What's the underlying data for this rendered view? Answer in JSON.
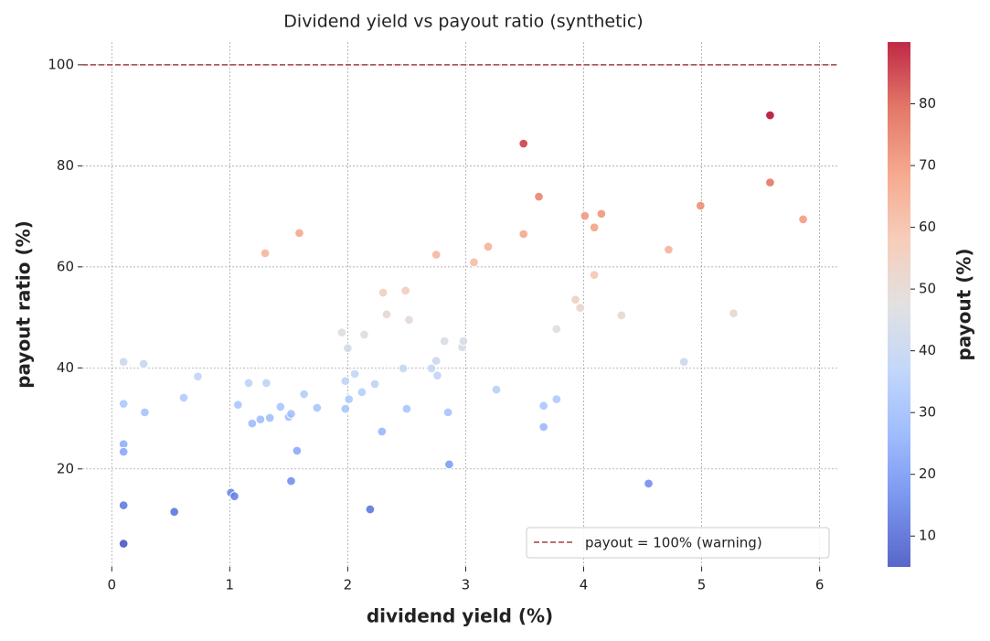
{
  "chart_data": {
    "type": "scatter",
    "title": "Dividend yield vs payout ratio (synthetic)",
    "x_label": "dividend yield (%)",
    "y_label": "payout ratio (%)",
    "x": [
      0.1,
      0.1,
      0.1,
      0.1,
      0.1,
      0.1,
      0.27,
      0.28,
      0.53,
      0.61,
      0.73,
      1.01,
      1.04,
      1.07,
      1.16,
      1.19,
      1.26,
      1.3,
      1.31,
      1.34,
      1.43,
      1.5,
      1.52,
      1.52,
      1.57,
      1.59,
      1.63,
      1.74,
      1.95,
      1.98,
      1.98,
      2.0,
      2.01,
      2.06,
      2.12,
      2.14,
      2.19,
      2.23,
      2.29,
      2.3,
      2.33,
      2.47,
      2.49,
      2.5,
      2.52,
      2.71,
      2.75,
      2.75,
      2.76,
      2.82,
      2.85,
      2.86,
      2.97,
      2.98,
      3.07,
      3.19,
      3.26,
      3.49,
      3.49,
      3.62,
      3.66,
      3.66,
      3.77,
      3.77,
      3.93,
      3.97,
      4.01,
      4.09,
      4.09,
      4.15,
      4.32,
      4.55,
      4.72,
      4.85,
      4.99,
      5.27,
      5.58,
      5.58,
      5.86
    ],
    "values": [
      5.2,
      12.8,
      24.9,
      23.4,
      32.9,
      41.2,
      40.8,
      31.2,
      11.5,
      34.1,
      38.3,
      15.3,
      14.6,
      32.7,
      37.0,
      29.0,
      29.8,
      62.7,
      37.0,
      30.1,
      32.3,
      30.3,
      30.9,
      17.6,
      23.6,
      66.7,
      34.8,
      32.1,
      47.0,
      31.9,
      37.4,
      43.9,
      33.8,
      38.8,
      35.2,
      46.6,
      12.0,
      36.8,
      27.4,
      54.9,
      50.6,
      39.9,
      55.3,
      31.9,
      49.5,
      39.9,
      62.4,
      41.4,
      38.5,
      45.3,
      31.2,
      20.9,
      44.1,
      45.3,
      60.9,
      64.0,
      35.7,
      84.4,
      66.5,
      73.9,
      32.5,
      28.3,
      47.7,
      33.8,
      53.5,
      51.9,
      70.1,
      67.8,
      58.4,
      70.5,
      50.4,
      17.1,
      63.4,
      41.2,
      72.1,
      50.8,
      90.0,
      76.7,
      69.4
    ],
    "xlim": [
      -0.25,
      6.15
    ],
    "xticks": [
      0,
      1,
      2,
      3,
      4,
      5,
      6
    ],
    "ylim": [
      0.6,
      104.5
    ],
    "yticks": [
      20,
      40,
      60,
      80,
      100
    ],
    "grid": true,
    "colormap": [
      "#3b4cc0",
      "#6282ea",
      "#8db0fe",
      "#b8d0f9",
      "#dddcdc",
      "#f5c4ad",
      "#f49a7b",
      "#de604d",
      "#b40426"
    ],
    "colorbar": {
      "label": "payout (%)",
      "lim": [
        5,
        90
      ],
      "ticks": [
        10,
        20,
        30,
        40,
        50,
        60,
        70,
        80
      ]
    },
    "reference_line": {
      "value": 100,
      "label": "payout = 100% (warning)",
      "color": "#a0403e"
    },
    "legend": "lower right"
  }
}
